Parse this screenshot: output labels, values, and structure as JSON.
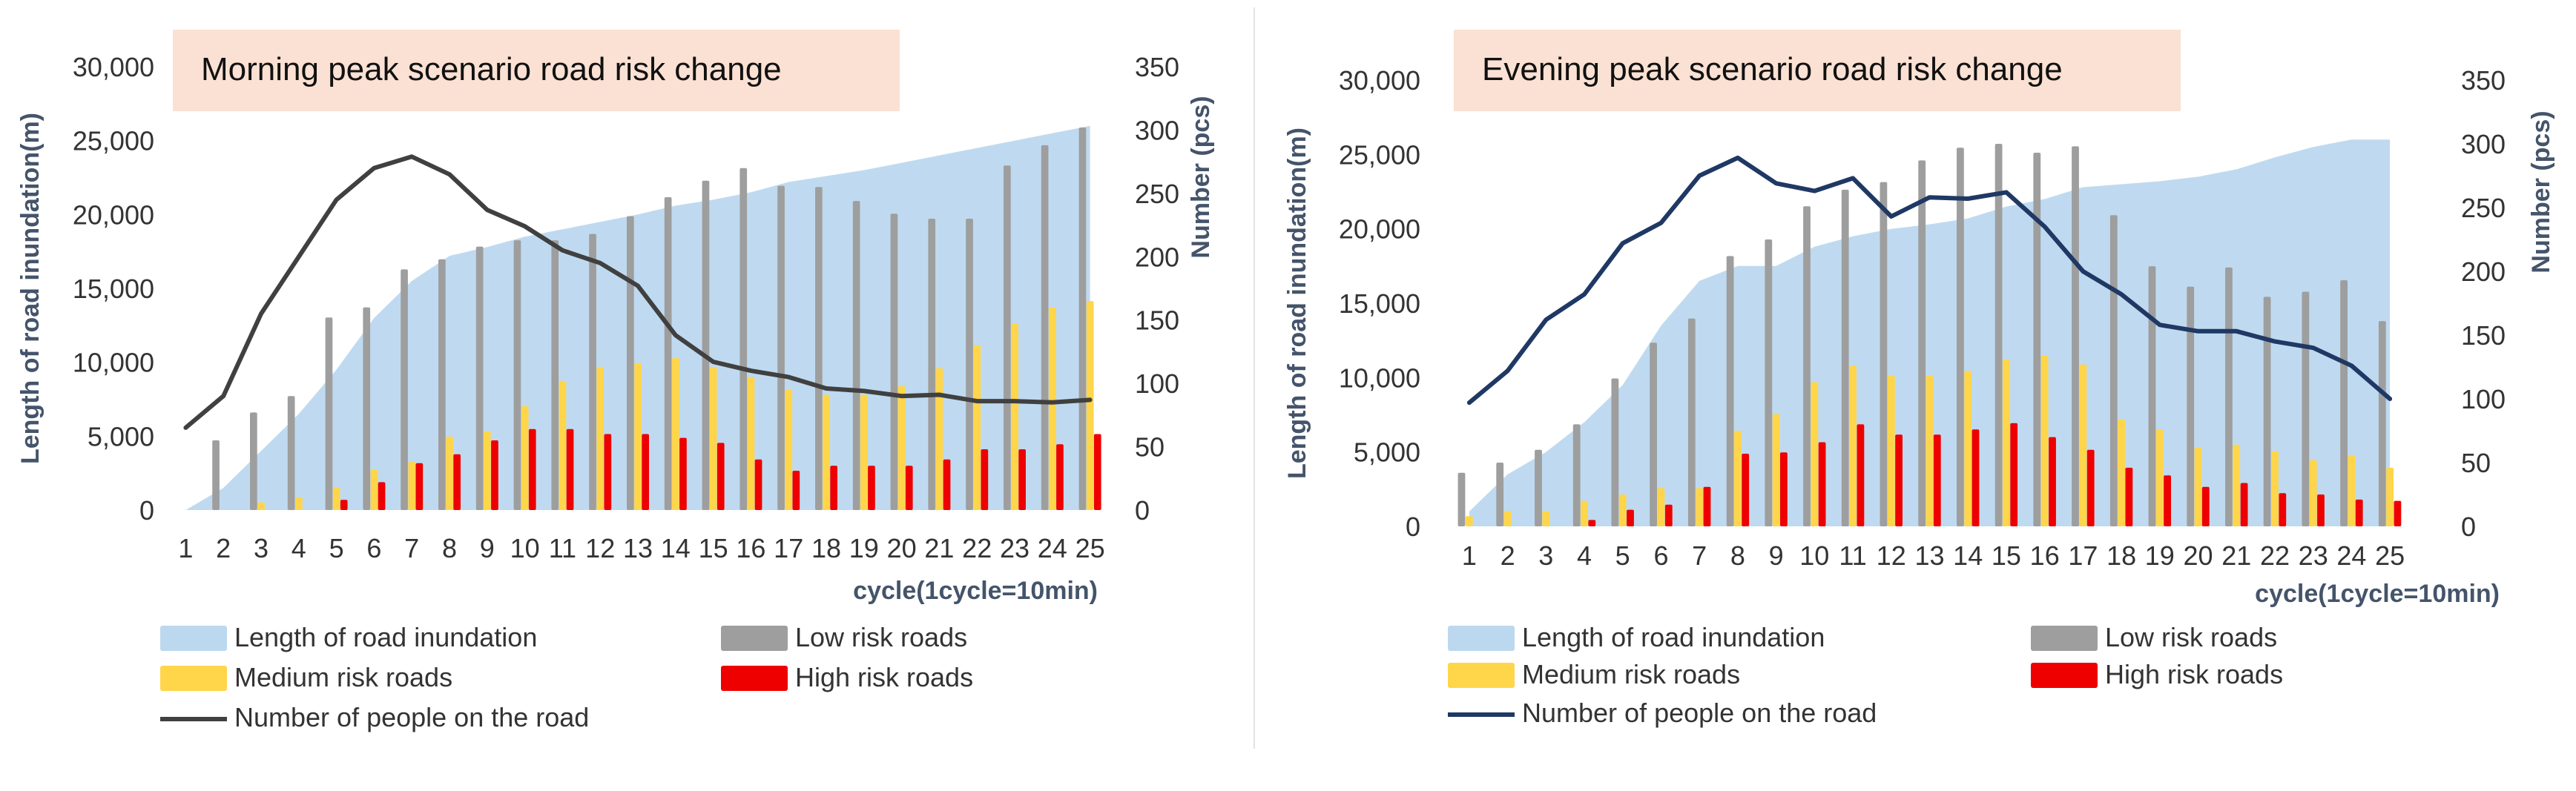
{
  "chart_data": [
    {
      "type": "bar",
      "title": "Morning peak scenario road risk change",
      "xlabel": "cycle(1cycle=10min)",
      "ylabel": "Length of road inundation(m)",
      "y2label": "Number (pcs)",
      "ylim": [
        0,
        30000
      ],
      "y2lim": [
        0,
        350
      ],
      "yticks": [
        "0",
        "5,000",
        "10,000",
        "15,000",
        "20,000",
        "25,000",
        "30,000"
      ],
      "y2ticks": [
        "0",
        "50",
        "100",
        "150",
        "200",
        "250",
        "300",
        "350"
      ],
      "categories": [
        "1",
        "2",
        "3",
        "4",
        "5",
        "6",
        "7",
        "8",
        "9",
        "10",
        "11",
        "12",
        "13",
        "14",
        "15",
        "16",
        "17",
        "18",
        "19",
        "20",
        "21",
        "22",
        "23",
        "24",
        "25"
      ],
      "grid": false,
      "legend_position": "bottom",
      "colors": {
        "area": "#bcd8ef",
        "low": "#9e9e9e",
        "medium": "#ffd54a",
        "high": "#ee0000",
        "line": "#404040",
        "title_bg": "#fbe1d3",
        "axis_text": "#44546a"
      },
      "legend": [
        {
          "key": "area",
          "label": "Length of road inundation"
        },
        {
          "key": "low",
          "label": "Low risk roads"
        },
        {
          "key": "medium",
          "label": "Medium risk roads"
        },
        {
          "key": "high",
          "label": "High risk roads"
        },
        {
          "key": "line",
          "label": "Number of people on the road"
        }
      ],
      "series": [
        {
          "name": "Length of road inundation",
          "kind": "area",
          "axis": "left",
          "values": [
            0,
            1500,
            4000,
            6500,
            9500,
            13000,
            15500,
            17200,
            17800,
            18500,
            19000,
            19500,
            20000,
            20600,
            21000,
            21500,
            22200,
            22600,
            23000,
            23500,
            24000,
            24500,
            25000,
            25500,
            26000
          ]
        },
        {
          "name": "Low risk roads",
          "kind": "bar",
          "axis": "right",
          "values": [
            0,
            55,
            77,
            90,
            152,
            160,
            190,
            198,
            208,
            213,
            213,
            218,
            232,
            247,
            260,
            270,
            256,
            255,
            244,
            234,
            230,
            230,
            272,
            288,
            302
          ]
        },
        {
          "name": "Medium risk roads",
          "kind": "bar",
          "axis": "right",
          "values": [
            0,
            0,
            6,
            10,
            18,
            32,
            38,
            58,
            62,
            82,
            102,
            113,
            116,
            120,
            113,
            105,
            95,
            91,
            91,
            98,
            112,
            130,
            147,
            160,
            165
          ]
        },
        {
          "name": "High risk roads",
          "kind": "bar",
          "axis": "right",
          "values": [
            0,
            0,
            0,
            0,
            8,
            22,
            37,
            44,
            55,
            64,
            64,
            60,
            60,
            57,
            53,
            40,
            31,
            35,
            35,
            35,
            40,
            48,
            48,
            52,
            60
          ]
        },
        {
          "name": "Number of people on the road",
          "kind": "line",
          "axis": "right",
          "values": [
            65,
            90,
            155,
            200,
            245,
            270,
            279,
            265,
            237,
            224,
            205,
            195,
            177,
            138,
            117,
            110,
            105,
            96,
            94,
            90,
            91,
            86,
            86,
            85,
            87
          ]
        }
      ]
    },
    {
      "type": "bar",
      "title": "Evening peak scenario road risk change",
      "xlabel": "cycle(1cycle=10min)",
      "ylabel": "Length of road inundation(m)",
      "y2label": "Number (pcs)",
      "ylim": [
        0,
        30000
      ],
      "y2lim": [
        0,
        350
      ],
      "yticks": [
        "0",
        "5,000",
        "10,000",
        "15,000",
        "20,000",
        "25,000",
        "30,000"
      ],
      "y2ticks": [
        "0",
        "50",
        "100",
        "150",
        "200",
        "250",
        "300",
        "350"
      ],
      "categories": [
        "1",
        "2",
        "3",
        "4",
        "5",
        "6",
        "7",
        "8",
        "9",
        "10",
        "11",
        "12",
        "13",
        "14",
        "15",
        "16",
        "17",
        "18",
        "19",
        "20",
        "21",
        "22",
        "23",
        "24",
        "25"
      ],
      "grid": false,
      "legend_position": "bottom",
      "colors": {
        "area": "#bcd8ef",
        "low": "#9e9e9e",
        "medium": "#ffd54a",
        "high": "#ee0000",
        "line": "#1f3864",
        "title_bg": "#fbe1d3",
        "axis_text": "#44546a"
      },
      "legend": [
        {
          "key": "area",
          "label": "Length of road inundation"
        },
        {
          "key": "low",
          "label": "Low risk roads"
        },
        {
          "key": "medium",
          "label": "Medium risk roads"
        },
        {
          "key": "high",
          "label": "High risk roads"
        },
        {
          "key": "line",
          "label": "Number of people on the road"
        }
      ],
      "series": [
        {
          "name": "Length of road inundation",
          "kind": "area",
          "axis": "left",
          "values": [
            1000,
            3500,
            5000,
            7000,
            9500,
            13500,
            16500,
            17500,
            17500,
            18800,
            19500,
            20000,
            20300,
            20700,
            21500,
            22000,
            22800,
            23000,
            23200,
            23500,
            24000,
            24800,
            25500,
            26000,
            26000
          ]
        },
        {
          "name": "Low risk roads",
          "kind": "bar",
          "axis": "right",
          "values": [
            42,
            50,
            60,
            80,
            116,
            144,
            163,
            212,
            225,
            251,
            264,
            270,
            287,
            297,
            300,
            293,
            298,
            244,
            204,
            188,
            203,
            180,
            184,
            193,
            161
          ]
        },
        {
          "name": "Medium risk roads",
          "kind": "bar",
          "axis": "right",
          "values": [
            8,
            12,
            12,
            20,
            25,
            30,
            30,
            75,
            88,
            113,
            126,
            118,
            118,
            122,
            131,
            134,
            127,
            84,
            76,
            62,
            64,
            59,
            52,
            56,
            46
          ]
        },
        {
          "name": "High risk roads",
          "kind": "bar",
          "axis": "right",
          "values": [
            0,
            0,
            0,
            5,
            13,
            17,
            31,
            57,
            58,
            66,
            80,
            72,
            72,
            76,
            81,
            70,
            60,
            46,
            40,
            31,
            34,
            26,
            25,
            21,
            20
          ]
        },
        {
          "name": "Number of people on the road",
          "kind": "line",
          "axis": "right",
          "values": [
            97,
            122,
            162,
            182,
            222,
            238,
            275,
            289,
            269,
            263,
            273,
            243,
            258,
            257,
            262,
            235,
            200,
            182,
            158,
            153,
            153,
            145,
            140,
            126,
            100
          ]
        }
      ]
    }
  ]
}
